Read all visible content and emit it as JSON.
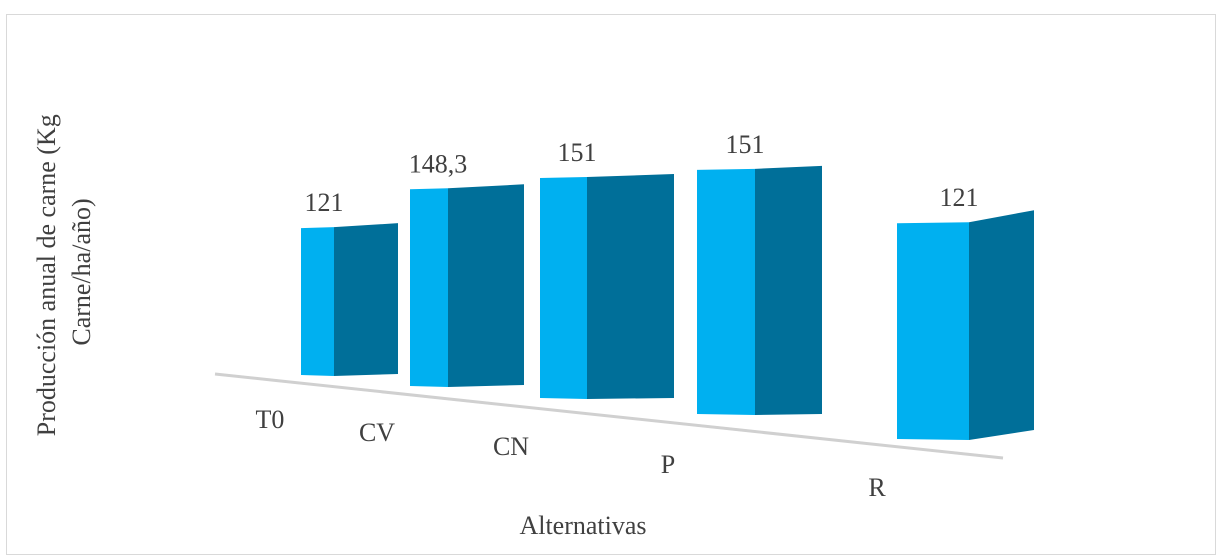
{
  "chart_data": {
    "type": "bar",
    "style": "3d",
    "categories": [
      "T0",
      "CV",
      "CN",
      "P",
      "R"
    ],
    "values": [
      121,
      148.3,
      151,
      151,
      121
    ],
    "value_labels": [
      "121",
      "148,3",
      "151",
      "151",
      "121"
    ],
    "xlabel": "Alternativas",
    "ylabel": "Producción anual de carne (Kg Carne/ha/año)",
    "ylabel_lines": [
      "Producción anual de carne (Kg",
      "Carne/ha/año)"
    ],
    "grid": false,
    "legend": "none",
    "colors": {
      "bar_front": "#00B0F0",
      "bar_side": "#006F99",
      "floor_line": "#D0D0D0",
      "text": "#404040",
      "frame_border": "#D9D9D9"
    }
  }
}
